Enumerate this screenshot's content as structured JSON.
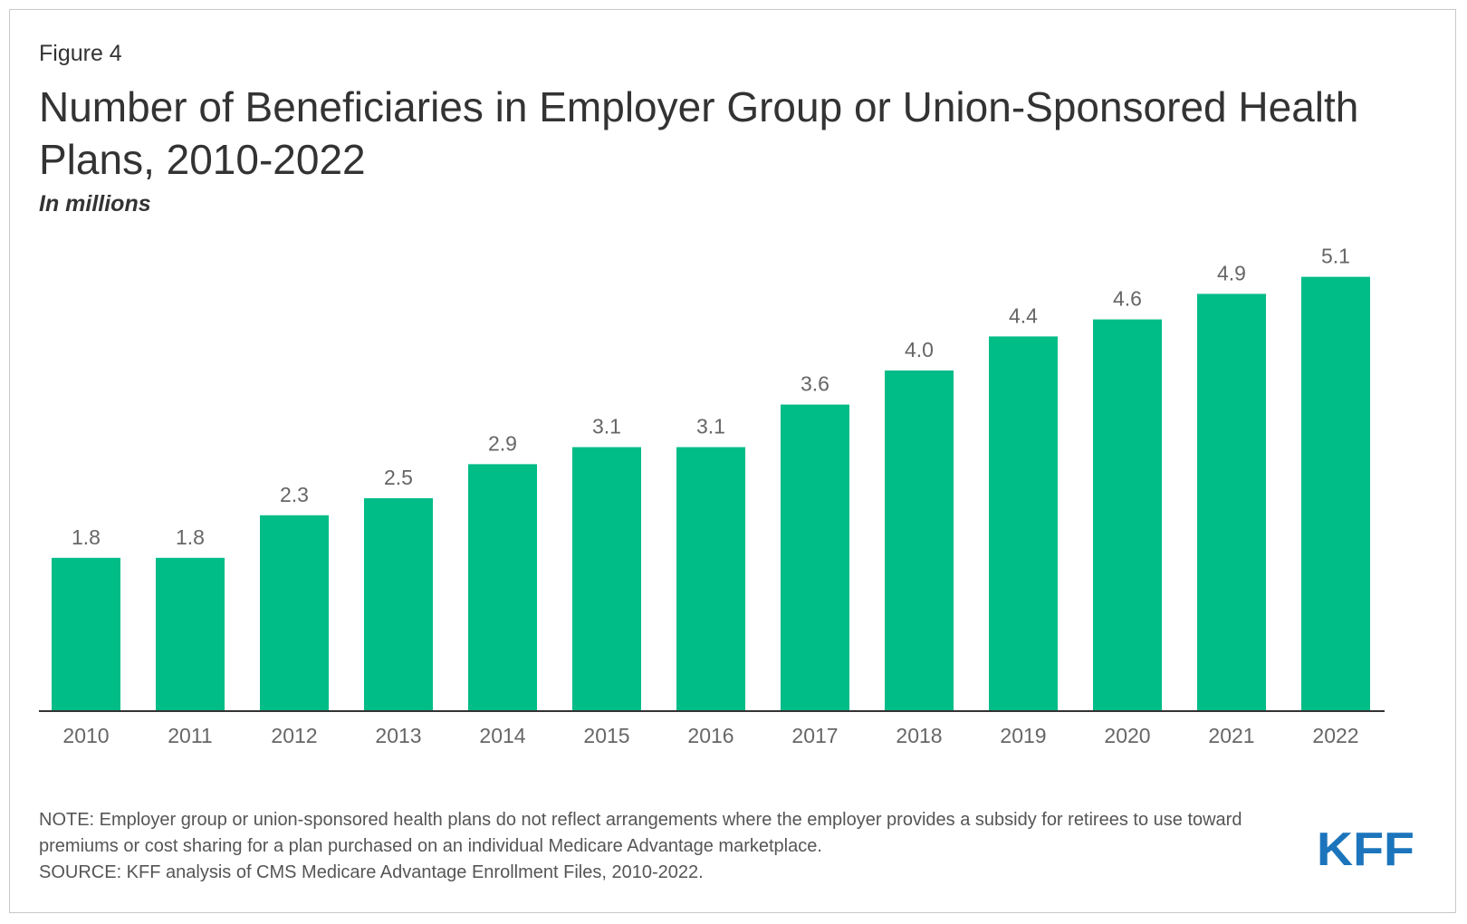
{
  "figure_label": "Figure 4",
  "title": "Number of Beneficiaries in Employer Group or Union-Sponsored Health Plans, 2010-2022",
  "subtitle": "In millions",
  "note": "NOTE: Employer group or union-sponsored health plans do not reflect arrangements where the employer provides a subsidy for retirees to use toward premiums or cost sharing for a plan purchased on an individual Medicare Advantage marketplace.",
  "source": "SOURCE: KFF analysis of CMS Medicare Advantage Enrollment Files, 2010-2022.",
  "logo_text": "KFF",
  "colors": {
    "bar": "#00bc87",
    "logo": "#1c75bc",
    "text": "#333333",
    "label": "#666666",
    "axis": "#333333"
  },
  "chart_data": {
    "type": "bar",
    "title": "Number of Beneficiaries in Employer Group or Union-Sponsored Health Plans, 2010-2022",
    "subtitle": "In millions",
    "categories": [
      "2010",
      "2011",
      "2012",
      "2013",
      "2014",
      "2015",
      "2016",
      "2017",
      "2018",
      "2019",
      "2020",
      "2021",
      "2022"
    ],
    "values": [
      1.8,
      1.8,
      2.3,
      2.5,
      2.9,
      3.1,
      3.1,
      3.6,
      4.0,
      4.4,
      4.6,
      4.9,
      5.1
    ],
    "value_labels": [
      "1.8",
      "1.8",
      "2.3",
      "2.5",
      "2.9",
      "3.1",
      "3.1",
      "3.6",
      "4.0",
      "4.4",
      "4.6",
      "4.9",
      "5.1"
    ],
    "ylim": [
      0,
      5.5
    ],
    "grid": false,
    "legend": "none"
  }
}
